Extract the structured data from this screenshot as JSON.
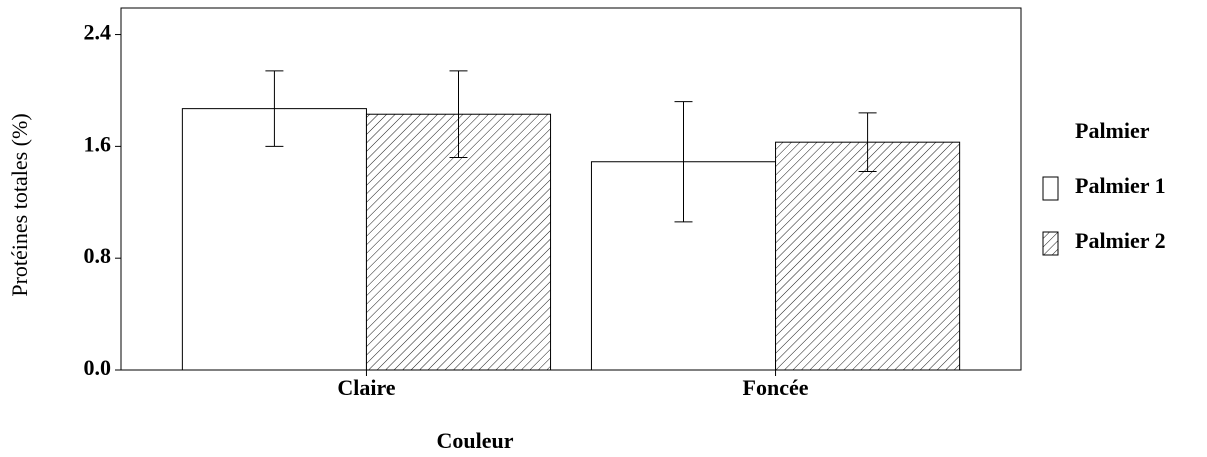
{
  "chart_data": {
    "type": "bar",
    "x_label": "Couleur",
    "y_label": "Protéines totales  (%)",
    "categories": [
      "Claire",
      "Foncée"
    ],
    "series": [
      {
        "name": "Palmier 1",
        "color": "#ffffff",
        "pattern": "none",
        "values": [
          1.87,
          1.49
        ],
        "errors": [
          0.27,
          0.43
        ]
      },
      {
        "name": "Palmier 2",
        "color": "#ffffff",
        "pattern": "hatch",
        "values": [
          1.83,
          1.63
        ],
        "errors": [
          0.31,
          0.21
        ]
      }
    ],
    "legend_title": "Palmier",
    "legend": "right",
    "ylim": [
      0,
      2.59
    ],
    "yticks": [
      {
        "value": 0,
        "label": "0.0"
      },
      {
        "value": 0.8,
        "label": "0.8"
      },
      {
        "value": 1.6,
        "label": "1.6"
      },
      {
        "value": 2.4,
        "label": "2.4"
      }
    ],
    "grid": false
  }
}
